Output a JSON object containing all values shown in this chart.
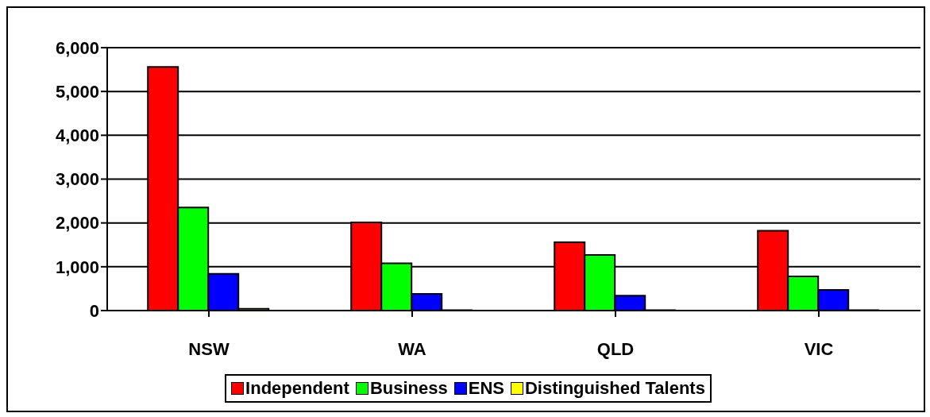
{
  "chart_data": {
    "type": "bar",
    "categories": [
      "NSW",
      "WA",
      "QLD",
      "VIC"
    ],
    "series": [
      {
        "name": "Independent",
        "color": "#ff0000",
        "values": [
          5560,
          2010,
          1560,
          1820
        ]
      },
      {
        "name": "Business",
        "color": "#00ff00",
        "values": [
          2350,
          1080,
          1270,
          780
        ]
      },
      {
        "name": "ENS",
        "color": "#0000ff",
        "values": [
          840,
          380,
          340,
          470
        ]
      },
      {
        "name": "Distinguished Talents",
        "color": "#ffff00",
        "values": [
          40,
          10,
          10,
          10
        ]
      }
    ],
    "ylim": [
      0,
      6000
    ],
    "yticks": [
      0,
      {
        "value": 1000,
        "label": "1,000"
      },
      {
        "value": 2000,
        "label": "2,000"
      },
      {
        "value": 3000,
        "label": "3,000"
      },
      {
        "value": 4000,
        "label": "4,000"
      },
      {
        "value": 5000,
        "label": "5,000"
      },
      {
        "value": 6000,
        "label": "6,000"
      }
    ],
    "grid": "y",
    "legend": "bottom"
  }
}
